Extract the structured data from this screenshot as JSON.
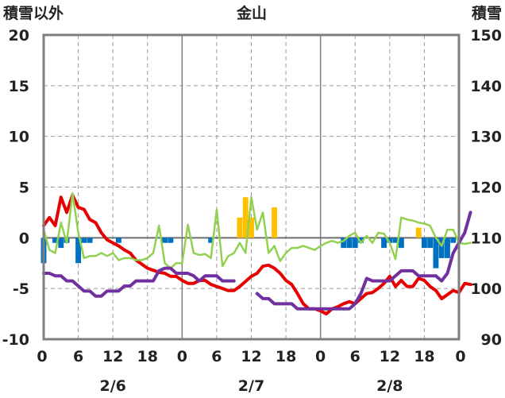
{
  "chart_data": {
    "type": "line",
    "title": "金山",
    "ylabel_left": "積雪以外",
    "ylabel_right": "積雪",
    "ylim_left": [
      -10,
      20
    ],
    "ylim_right": [
      90,
      150
    ],
    "yticks_left": [
      "20",
      "15",
      "10",
      "5",
      "0",
      "-5",
      "-10"
    ],
    "yticks_right": [
      "150",
      "140",
      "130",
      "120",
      "110",
      "100",
      "90"
    ],
    "xticks": [
      "0",
      "6",
      "12",
      "18",
      "0",
      "6",
      "12",
      "18",
      "0",
      "6",
      "12",
      "18",
      "0"
    ],
    "date_labels": [
      "2/6",
      "2/7",
      "2/8"
    ],
    "grid": true,
    "series": [
      {
        "color": "#e60000",
        "axis": "left",
        "values": [
          1.2,
          2.0,
          1.2,
          4.0,
          2.5,
          4.2,
          3.0,
          2.8,
          1.8,
          1.5,
          0.5,
          -0.2,
          -0.5,
          -0.8,
          -1.2,
          -1.5,
          -2.2,
          -2.6,
          -3.0,
          -3.2,
          -3.4,
          -3.5,
          -3.8,
          -3.8,
          -4.2,
          -4.5,
          -4.5,
          -4.2,
          -4.2,
          -4.6,
          -4.8,
          -5.0,
          -5.2,
          -5.2,
          -4.8,
          -4.3,
          -3.8,
          -3.5,
          -2.8,
          -2.7,
          -3.0,
          -3.5,
          -4.2,
          -4.6,
          -5.5,
          -6.5,
          -7.0,
          -7.0,
          -7.2,
          -7.5,
          -7.0,
          -6.8,
          -6.5,
          -6.3,
          -6.5,
          -6.0,
          -5.5,
          -5.4,
          -5.0,
          -4.5,
          -3.8,
          -4.8,
          -4.2,
          -4.8,
          -4.8,
          -4.0,
          -4.2,
          -4.8,
          -5.2,
          -6.0,
          -5.6,
          -5.2,
          -5.4,
          -4.5,
          -4.6
        ]
      },
      {
        "color": "#92d050",
        "axis": "left",
        "values": [
          0.8,
          -1.2,
          -1.5,
          1.5,
          -0.5,
          4.4,
          0.5,
          -2.0,
          -1.8,
          -1.8,
          -1.5,
          -1.8,
          -1.5,
          -2.2,
          -2.0,
          -2.0,
          -2.2,
          -2.2,
          -2.0,
          -1.5,
          1.2,
          -2.5,
          -3.0,
          -2.5,
          -2.5,
          1.3,
          -1.5,
          -1.7,
          -1.6,
          -2.0,
          2.8,
          -2.8,
          -1.8,
          -1.5,
          -0.5,
          -1.5,
          4.0,
          0.8,
          2.5,
          -1.5,
          -0.8,
          -2.3,
          -1.5,
          -1.0,
          -1.0,
          -0.8,
          -1.0,
          -1.2,
          -0.8,
          -0.5,
          -0.3,
          -0.5,
          -0.3,
          0.2,
          0.5,
          -0.5,
          0.2,
          -0.5,
          0.5,
          0.4,
          -0.5,
          -2.1,
          2.0,
          1.8,
          1.7,
          1.5,
          1.4,
          1.2,
          0.0,
          -0.8,
          0.8,
          0.8,
          -0.5,
          -0.6,
          -0.5
        ]
      },
      {
        "color": "#7030a0",
        "axis": "right",
        "values": [
          103,
          103,
          102.5,
          102.5,
          101.5,
          101.5,
          100.5,
          99.5,
          99.5,
          98.5,
          98.5,
          99.5,
          99.5,
          99.5,
          100.5,
          100.5,
          101.5,
          101.5,
          101.5,
          101.5,
          103.5,
          104,
          104,
          103,
          103,
          103,
          102.5,
          101.5,
          102.5,
          102.5,
          102.5,
          101.5,
          101.5,
          101.5,
          null,
          null,
          null,
          99,
          98,
          98,
          97,
          97,
          97,
          97,
          96,
          96,
          96,
          96,
          96,
          96,
          96,
          96,
          96,
          96,
          97,
          99,
          102,
          101.5,
          101.5,
          101.5,
          101.5,
          102.5,
          103.5,
          103.5,
          103.5,
          102.5,
          102.5,
          102.5,
          102.5,
          101.5,
          103,
          107,
          109,
          111,
          115
        ]
      }
    ],
    "bars": [
      {
        "color": "#0070c0",
        "axis": "left",
        "values": [
          {
            "x": 0,
            "y": -2.5
          },
          {
            "x": 2,
            "y": -0.5
          },
          {
            "x": 3,
            "y": -1.0
          },
          {
            "x": 4,
            "y": -0.5
          },
          {
            "x": 6,
            "y": -2.5
          },
          {
            "x": 7,
            "y": -0.5
          },
          {
            "x": 8,
            "y": -0.5
          },
          {
            "x": 13,
            "y": -0.5
          },
          {
            "x": 21,
            "y": -0.5
          },
          {
            "x": 22,
            "y": -0.5
          },
          {
            "x": 29,
            "y": -0.5
          },
          {
            "x": 52,
            "y": -1.0
          },
          {
            "x": 53,
            "y": -1.0
          },
          {
            "x": 54,
            "y": -1.0
          },
          {
            "x": 55,
            "y": -0.5
          },
          {
            "x": 59,
            "y": -1.0
          },
          {
            "x": 60,
            "y": -0.5
          },
          {
            "x": 61,
            "y": -0.5
          },
          {
            "x": 62,
            "y": -1.0
          },
          {
            "x": 66,
            "y": -1.0
          },
          {
            "x": 67,
            "y": -1.0
          },
          {
            "x": 68,
            "y": -3.0
          },
          {
            "x": 69,
            "y": -2.0
          },
          {
            "x": 70,
            "y": -2.0
          },
          {
            "x": 71,
            "y": -0.5
          }
        ]
      },
      {
        "color": "#ffc000",
        "axis": "left",
        "values": [
          {
            "x": 34,
            "y": 2.0
          },
          {
            "x": 35,
            "y": 4.0
          },
          {
            "x": 36,
            "y": 2.0
          },
          {
            "x": 40,
            "y": 3.0
          },
          {
            "x": 65,
            "y": 1.0
          }
        ]
      }
    ]
  }
}
